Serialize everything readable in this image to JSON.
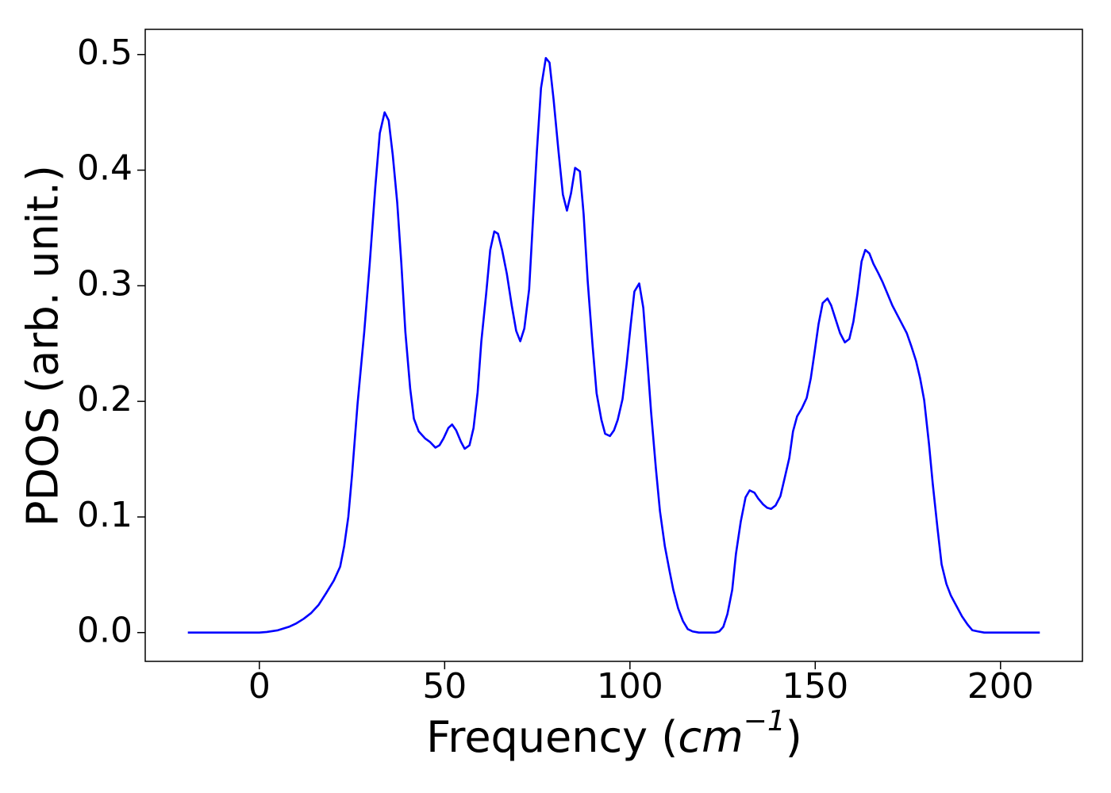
{
  "chart_data": {
    "type": "line",
    "ylabel": "PDOS (arb. unit.)",
    "xlabel_parts": [
      "Frequency (",
      "cm",
      "−1",
      ")"
    ],
    "x": [
      -19.3,
      0,
      2,
      5,
      8,
      10,
      12,
      14,
      16,
      18,
      20.1,
      21.8,
      22.9,
      24,
      25,
      26.5,
      28.3,
      29.8,
      31.3,
      32.5,
      33.8,
      34.9,
      36,
      37.2,
      38.3,
      39.4,
      40.7,
      41.7,
      43,
      44.7,
      46,
      47.5,
      48.6,
      49.7,
      51,
      52,
      53.1,
      54.4,
      55.4,
      56.7,
      57.8,
      58.9,
      59.9,
      61.2,
      62.3,
      63.4,
      64.4,
      65.5,
      66.8,
      68.1,
      69.3,
      70.4,
      71.5,
      72.8,
      73.8,
      74.9,
      76,
      77.3,
      78.3,
      79.4,
      80.7,
      81.9,
      83,
      84.1,
      85.2,
      86.5,
      87.5,
      88.6,
      89.9,
      91,
      92.3,
      93.3,
      94.6,
      95.7,
      96.7,
      98,
      99.1,
      100.2,
      101.2,
      102.5,
      103.6,
      104.7,
      105.7,
      107,
      108.1,
      109.4,
      110.7,
      111.7,
      113,
      114.3,
      115.6,
      116.9,
      118.6,
      122.9,
      124.1,
      125.2,
      126.3,
      127.6,
      128.6,
      129.9,
      131.2,
      132.3,
      133.6,
      134.6,
      135.9,
      137,
      138.1,
      139.3,
      140.6,
      141.7,
      143,
      144,
      145.1,
      146.4,
      147.7,
      148.8,
      149.8,
      150.9,
      152,
      153.3,
      154.3,
      155.4,
      156.7,
      158,
      159.2,
      160.3,
      161.4,
      162.5,
      163.5,
      164.6,
      165.7,
      167,
      168.2,
      169.5,
      170.8,
      172.1,
      173.4,
      174.7,
      175.9,
      177.2,
      178.3,
      179.4,
      180.7,
      181.7,
      183,
      184.1,
      185.4,
      186.6,
      188.1,
      189.6,
      191.1,
      192.4,
      193.9,
      195.6,
      210.6
    ],
    "series": [
      {
        "color": "#0000ff",
        "values": [
          0,
          0,
          0.0005,
          0.002,
          0.005,
          0.008,
          0.012,
          0.017,
          0.024,
          0.034,
          0.045,
          0.057,
          0.075,
          0.1,
          0.136,
          0.198,
          0.26,
          0.32,
          0.386,
          0.432,
          0.45,
          0.443,
          0.413,
          0.372,
          0.32,
          0.26,
          0.211,
          0.185,
          0.174,
          0.168,
          0.165,
          0.16,
          0.162,
          0.168,
          0.177,
          0.18,
          0.175,
          0.165,
          0.159,
          0.162,
          0.177,
          0.208,
          0.252,
          0.293,
          0.331,
          0.347,
          0.345,
          0.331,
          0.31,
          0.283,
          0.261,
          0.252,
          0.263,
          0.297,
          0.355,
          0.417,
          0.471,
          0.497,
          0.493,
          0.461,
          0.417,
          0.379,
          0.365,
          0.38,
          0.402,
          0.399,
          0.362,
          0.304,
          0.249,
          0.207,
          0.184,
          0.172,
          0.17,
          0.175,
          0.184,
          0.202,
          0.232,
          0.266,
          0.295,
          0.302,
          0.281,
          0.235,
          0.191,
          0.142,
          0.105,
          0.075,
          0.053,
          0.037,
          0.021,
          0.01,
          0.003,
          0.001,
          0,
          0,
          0.001,
          0.005,
          0.016,
          0.037,
          0.068,
          0.096,
          0.117,
          0.123,
          0.121,
          0.116,
          0.111,
          0.108,
          0.107,
          0.11,
          0.118,
          0.133,
          0.151,
          0.174,
          0.187,
          0.194,
          0.203,
          0.22,
          0.242,
          0.267,
          0.285,
          0.289,
          0.283,
          0.272,
          0.259,
          0.251,
          0.254,
          0.269,
          0.293,
          0.321,
          0.331,
          0.328,
          0.319,
          0.311,
          0.303,
          0.293,
          0.283,
          0.275,
          0.267,
          0.259,
          0.248,
          0.235,
          0.22,
          0.201,
          0.163,
          0.129,
          0.09,
          0.059,
          0.042,
          0.032,
          0.023,
          0.014,
          0.007,
          0.002,
          0.001,
          0,
          0
        ]
      }
    ],
    "xlim": [
      -30.8,
      222.1
    ],
    "xticks": [
      0,
      50,
      100,
      150,
      200
    ],
    "ylim": [
      -0.0249,
      0.5218
    ],
    "yticks": [
      {
        "value": 0,
        "label": "0.0"
      },
      0.1,
      0.2,
      0.3,
      0.4,
      0.5
    ]
  }
}
